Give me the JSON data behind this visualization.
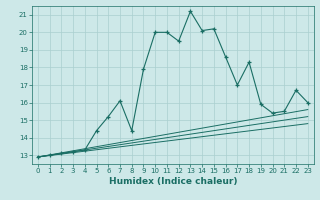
{
  "xlabel": "Humidex (Indice chaleur)",
  "bg_color": "#cde8e8",
  "grid_color": "#aacfcf",
  "line_color": "#1a6e64",
  "xlim": [
    -0.5,
    23.5
  ],
  "ylim": [
    12.5,
    21.5
  ],
  "yticks": [
    13,
    14,
    15,
    16,
    17,
    18,
    19,
    20,
    21
  ],
  "xticks": [
    0,
    1,
    2,
    3,
    4,
    5,
    6,
    7,
    8,
    9,
    10,
    11,
    12,
    13,
    14,
    15,
    16,
    17,
    18,
    19,
    20,
    21,
    22,
    23
  ],
  "main_x": [
    0,
    1,
    2,
    3,
    4,
    5,
    6,
    7,
    8,
    9,
    10,
    11,
    12,
    13,
    14,
    15,
    16,
    17,
    18,
    19,
    20,
    21,
    22,
    23
  ],
  "main_y": [
    12.9,
    13.0,
    13.1,
    13.2,
    13.3,
    14.4,
    15.2,
    16.1,
    14.4,
    17.9,
    20.0,
    20.0,
    19.5,
    21.2,
    20.1,
    20.2,
    18.6,
    17.0,
    18.3,
    15.9,
    15.4,
    15.5,
    16.7,
    16.0
  ],
  "line1_x": [
    0,
    23
  ],
  "line1_y": [
    12.9,
    15.6
  ],
  "line2_x": [
    0,
    23
  ],
  "line2_y": [
    12.9,
    15.2
  ],
  "line3_x": [
    0,
    23
  ],
  "line3_y": [
    12.9,
    14.8
  ]
}
